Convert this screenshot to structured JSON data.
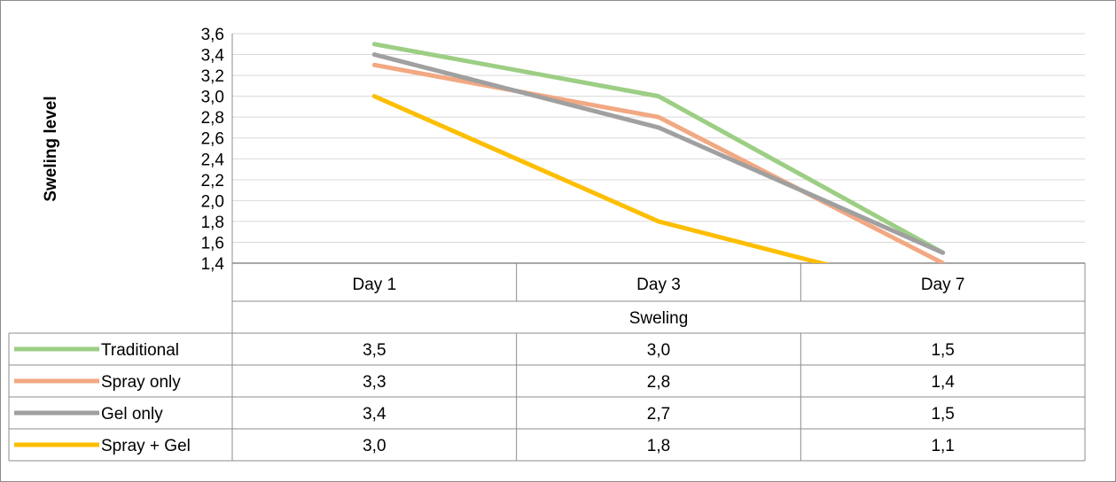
{
  "chart_data": {
    "type": "line",
    "ylabel": "Sweling level",
    "xlabel": "Sweling",
    "categories": [
      "Day 1",
      "Day 3",
      "Day 7"
    ],
    "ylim": [
      1.4,
      3.6
    ],
    "yticks": [
      "1,4",
      "1,6",
      "1,8",
      "2,0",
      "2,2",
      "2,4",
      "2,6",
      "2,8",
      "3,0",
      "3,2",
      "3,4",
      "3,6"
    ],
    "grid": true,
    "legend": "data-table-left",
    "series": [
      {
        "name": "Traditional",
        "color": "#9cce84",
        "values": [
          3.5,
          3.0,
          1.5
        ],
        "labels": [
          "3,5",
          "3,0",
          "1,5"
        ]
      },
      {
        "name": "Spray only",
        "color": "#f2a882",
        "values": [
          3.3,
          2.8,
          1.4
        ],
        "labels": [
          "3,3",
          "2,8",
          "1,4"
        ]
      },
      {
        "name": "Gel only",
        "color": "#a0a0a0",
        "values": [
          3.4,
          2.7,
          1.5
        ],
        "labels": [
          "3,4",
          "2,7",
          "1,5"
        ]
      },
      {
        "name": "Spray + Gel",
        "color": "#fdbe00",
        "values": [
          3.0,
          1.8,
          1.1
        ],
        "labels": [
          "3,0",
          "1,8",
          "1,1"
        ]
      }
    ]
  }
}
